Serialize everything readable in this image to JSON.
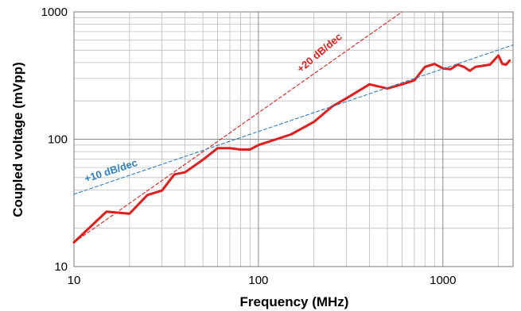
{
  "chart_data": {
    "type": "line",
    "title": "",
    "xlabel": "Frequency (MHz)",
    "ylabel": "Coupled voltage (mVpp)",
    "x_scale": "log",
    "y_scale": "log",
    "xlim": [
      10,
      2400
    ],
    "ylim": [
      10,
      1000
    ],
    "grid": true,
    "x_ticks": [
      {
        "value": 10,
        "label": "10"
      },
      {
        "value": 100,
        "label": "100"
      },
      {
        "value": 1000,
        "label": "1000"
      }
    ],
    "y_ticks": [
      {
        "value": 10,
        "label": "10"
      },
      {
        "value": 100,
        "label": "100"
      },
      {
        "value": 1000,
        "label": "1000"
      }
    ],
    "series": [
      {
        "color": "#e31c1c",
        "x": [
          10,
          15,
          20,
          25,
          30,
          35,
          40,
          50,
          60,
          70,
          80,
          90,
          100,
          150,
          200,
          250,
          300,
          400,
          500,
          600,
          700,
          800,
          900,
          1000,
          1100,
          1200,
          1300,
          1400,
          1500,
          1700,
          1800,
          2000,
          2100,
          2200,
          2300
        ],
        "y": [
          15.5,
          27,
          26,
          36.5,
          39.5,
          53,
          55,
          69,
          85,
          85,
          83,
          83,
          90,
          109,
          137,
          180,
          210,
          270,
          250,
          270,
          290,
          370,
          390,
          360,
          355,
          385,
          370,
          345,
          370,
          380,
          385,
          455,
          390,
          385,
          415
        ]
      },
      {
        "color": "#e31c1c",
        "dashed": true,
        "x": [
          10,
          600
        ],
        "y": [
          15.5,
          1000
        ]
      },
      {
        "color": "#2e7fc4",
        "dashed": true,
        "x": [
          10,
          2400
        ],
        "y": [
          37,
          550
        ]
      }
    ],
    "annotations": [
      {
        "text": "+20 dB/dec",
        "color": "#e31c1c"
      },
      {
        "text": "+10 dB/dec",
        "color": "#2e7fc4"
      }
    ]
  }
}
